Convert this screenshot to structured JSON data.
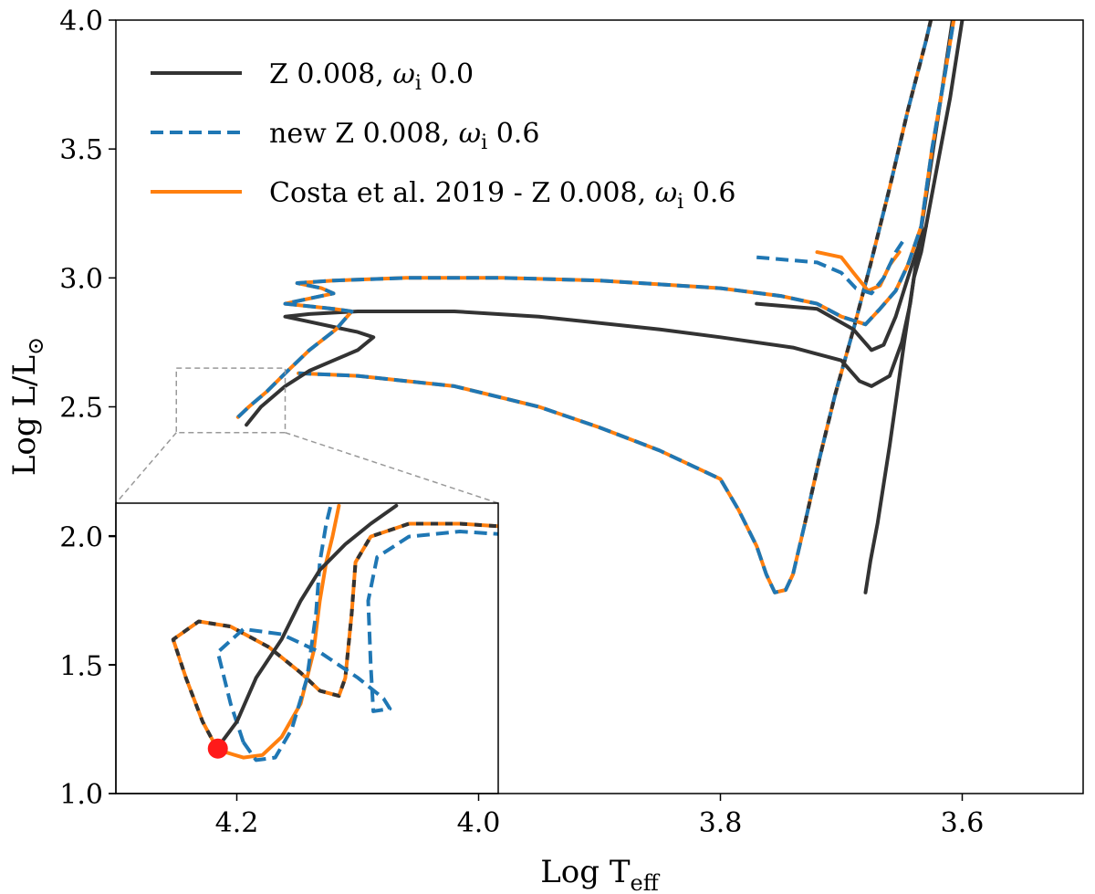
{
  "chart_data": {
    "type": "line",
    "xlabel": "Log T",
    "xlabel_sub": "eff",
    "ylabel": "Log L/L",
    "ylabel_sub": "⊙",
    "xlim": [
      4.3,
      3.5
    ],
    "ylim": [
      1.0,
      4.0
    ],
    "xticks": [
      "4.2",
      "4.0",
      "3.8",
      "3.6"
    ],
    "yticks": [
      "1.0",
      "1.5",
      "2.0",
      "2.5",
      "3.0",
      "3.5",
      "4.0"
    ],
    "colors": {
      "black": "#333333",
      "blue": "#1f77b4",
      "orange": "#ff7f0e",
      "red": "#ff1a1a",
      "zoombox": "#999999"
    },
    "legend": [
      {
        "label_pre": "Z 0.008, ",
        "omega": "ω",
        "omega_sub": "i",
        "label_post": " 0.0",
        "style": "solid",
        "color": "#333333"
      },
      {
        "label_pre": "new Z 0.008, ",
        "omega": "ω",
        "omega_sub": "i",
        "label_post": " 0.6",
        "style": "dashed",
        "color": "#1f77b4"
      },
      {
        "label_pre": "Costa et al. 2019 - Z 0.008, ",
        "omega": "ω",
        "omega_sub": "i",
        "label_post": " 0.6",
        "style": "solid",
        "color": "#ff7f0e"
      }
    ],
    "series": [
      {
        "name": "Z 0.008, ωi 0.0 (low mass track)",
        "style": "solid",
        "color": "#333333",
        "points": [
          [
            3.68,
            1.78
          ],
          [
            3.676,
            1.9
          ],
          [
            3.67,
            2.05
          ],
          [
            3.665,
            2.2
          ],
          [
            3.66,
            2.35
          ],
          [
            3.654,
            2.55
          ],
          [
            3.648,
            2.75
          ],
          [
            3.64,
            3.0
          ],
          [
            3.632,
            3.25
          ],
          [
            3.624,
            3.5
          ],
          [
            3.616,
            3.75
          ],
          [
            3.608,
            4.0
          ]
        ]
      },
      {
        "name": "Costa et al. 2019 - Z 0.008, ωi 0.6 (low mass track)",
        "style": "solid",
        "color": "#ff7f0e",
        "points": [
          [
            4.149,
            2.63
          ],
          [
            4.1,
            2.62
          ],
          [
            4.02,
            2.58
          ],
          [
            3.95,
            2.5
          ],
          [
            3.9,
            2.42
          ],
          [
            3.85,
            2.33
          ],
          [
            3.8,
            2.22
          ],
          [
            3.785,
            2.1
          ],
          [
            3.77,
            1.96
          ],
          [
            3.762,
            1.85
          ],
          [
            3.755,
            1.78
          ],
          [
            3.746,
            1.79
          ],
          [
            3.74,
            1.85
          ],
          [
            3.73,
            2.05
          ],
          [
            3.718,
            2.3
          ],
          [
            3.705,
            2.55
          ],
          [
            3.69,
            2.8
          ],
          [
            3.676,
            3.05
          ],
          [
            3.66,
            3.35
          ],
          [
            3.645,
            3.65
          ],
          [
            3.63,
            3.92
          ],
          [
            3.626,
            4.0
          ]
        ]
      },
      {
        "name": "new Z 0.008, ωi 0.6 (low mass track)",
        "style": "dashed",
        "color": "#1f77b4",
        "points": [
          [
            4.149,
            2.63
          ],
          [
            4.1,
            2.62
          ],
          [
            4.02,
            2.58
          ],
          [
            3.95,
            2.5
          ],
          [
            3.9,
            2.42
          ],
          [
            3.85,
            2.33
          ],
          [
            3.8,
            2.22
          ],
          [
            3.785,
            2.1
          ],
          [
            3.77,
            1.96
          ],
          [
            3.762,
            1.85
          ],
          [
            3.755,
            1.78
          ],
          [
            3.746,
            1.79
          ],
          [
            3.74,
            1.85
          ],
          [
            3.73,
            2.05
          ],
          [
            3.718,
            2.3
          ],
          [
            3.705,
            2.55
          ],
          [
            3.69,
            2.8
          ],
          [
            3.676,
            3.05
          ],
          [
            3.66,
            3.35
          ],
          [
            3.645,
            3.65
          ],
          [
            3.63,
            3.92
          ],
          [
            3.626,
            4.0
          ]
        ]
      },
      {
        "name": "Z 0.008, ωi 0.0 (low mass track overlay)",
        "style": "dashed",
        "color": "#333333",
        "points": [
          [
            3.73,
            2.05
          ],
          [
            3.718,
            2.3
          ],
          [
            3.705,
            2.55
          ],
          [
            3.69,
            2.8
          ],
          [
            3.676,
            3.05
          ],
          [
            3.66,
            3.35
          ],
          [
            3.645,
            3.65
          ],
          [
            3.63,
            3.92
          ],
          [
            3.626,
            4.0
          ]
        ]
      },
      {
        "name": "Z 0.008, ωi 0.0 (high mass track)",
        "style": "solid",
        "color": "#333333",
        "points": [
          [
            4.192,
            2.43
          ],
          [
            4.18,
            2.5
          ],
          [
            4.16,
            2.58
          ],
          [
            4.14,
            2.64
          ],
          [
            4.12,
            2.68
          ],
          [
            4.1,
            2.72
          ],
          [
            4.087,
            2.77
          ],
          [
            4.1,
            2.79
          ],
          [
            4.12,
            2.81
          ],
          [
            4.14,
            2.83
          ],
          [
            4.16,
            2.85
          ],
          [
            4.14,
            2.86
          ],
          [
            4.1,
            2.87
          ],
          [
            4.02,
            2.87
          ],
          [
            3.95,
            2.85
          ],
          [
            3.85,
            2.8
          ],
          [
            3.8,
            2.77
          ],
          [
            3.74,
            2.73
          ],
          [
            3.7,
            2.68
          ],
          [
            3.685,
            2.6
          ],
          [
            3.675,
            2.58
          ],
          [
            3.66,
            2.62
          ],
          [
            3.65,
            2.75
          ],
          [
            3.643,
            2.9
          ],
          [
            3.64,
            3.0
          ],
          [
            3.634,
            3.1
          ],
          [
            3.63,
            3.2
          ],
          [
            3.62,
            3.45
          ],
          [
            3.61,
            3.7
          ],
          [
            3.6,
            4.0
          ]
        ]
      },
      {
        "name": "Z 0.008, ωi 0.0 (high mass loop)",
        "style": "solid",
        "color": "#333333",
        "points": [
          [
            3.77,
            2.9
          ],
          [
            3.72,
            2.88
          ],
          [
            3.69,
            2.8
          ],
          [
            3.675,
            2.72
          ],
          [
            3.665,
            2.74
          ],
          [
            3.655,
            2.85
          ],
          [
            3.645,
            3.0
          ],
          [
            3.638,
            3.1
          ],
          [
            3.63,
            3.2
          ]
        ]
      },
      {
        "name": "Costa et al. 2019 - Z 0.008, ωi 0.6 (high mass track)",
        "style": "solid",
        "color": "#ff7f0e",
        "points": [
          [
            4.199,
            2.46
          ],
          [
            4.19,
            2.5
          ],
          [
            4.175,
            2.56
          ],
          [
            4.16,
            2.63
          ],
          [
            4.14,
            2.72
          ],
          [
            4.118,
            2.8
          ],
          [
            4.105,
            2.87
          ],
          [
            4.12,
            2.88
          ],
          [
            4.14,
            2.89
          ],
          [
            4.16,
            2.9
          ],
          [
            4.14,
            2.92
          ],
          [
            4.12,
            2.94
          ],
          [
            4.13,
            2.96
          ],
          [
            4.15,
            2.98
          ],
          [
            4.12,
            2.99
          ],
          [
            4.06,
            3.0
          ],
          [
            3.98,
            3.0
          ],
          [
            3.9,
            2.99
          ],
          [
            3.8,
            2.96
          ],
          [
            3.75,
            2.93
          ],
          [
            3.72,
            2.9
          ],
          [
            3.7,
            2.85
          ],
          [
            3.68,
            2.82
          ],
          [
            3.668,
            2.88
          ],
          [
            3.655,
            2.95
          ],
          [
            3.645,
            3.05
          ],
          [
            3.634,
            3.2
          ],
          [
            3.625,
            3.5
          ],
          [
            3.614,
            3.8
          ],
          [
            3.607,
            4.0
          ]
        ]
      },
      {
        "name": "new Z 0.008, ωi 0.6 (high mass track)",
        "style": "dashed",
        "color": "#1f77b4",
        "points": [
          [
            4.199,
            2.46
          ],
          [
            4.19,
            2.5
          ],
          [
            4.175,
            2.56
          ],
          [
            4.16,
            2.63
          ],
          [
            4.14,
            2.72
          ],
          [
            4.118,
            2.8
          ],
          [
            4.105,
            2.87
          ],
          [
            4.12,
            2.88
          ],
          [
            4.14,
            2.89
          ],
          [
            4.16,
            2.9
          ],
          [
            4.14,
            2.92
          ],
          [
            4.12,
            2.94
          ],
          [
            4.13,
            2.96
          ],
          [
            4.15,
            2.98
          ],
          [
            4.12,
            2.99
          ],
          [
            4.06,
            3.0
          ],
          [
            3.98,
            3.0
          ],
          [
            3.9,
            2.99
          ],
          [
            3.8,
            2.96
          ],
          [
            3.75,
            2.93
          ],
          [
            3.72,
            2.9
          ],
          [
            3.7,
            2.85
          ],
          [
            3.68,
            2.82
          ],
          [
            3.668,
            2.88
          ],
          [
            3.655,
            2.95
          ],
          [
            3.645,
            3.05
          ],
          [
            3.634,
            3.2
          ],
          [
            3.625,
            3.5
          ],
          [
            3.614,
            3.8
          ],
          [
            3.607,
            4.0
          ]
        ]
      },
      {
        "name": "Costa et al. 2019 - Z 0.008, ωi 0.6 (upper blue loop)",
        "style": "solid",
        "color": "#ff7f0e",
        "points": [
          [
            3.72,
            3.1
          ],
          [
            3.7,
            3.08
          ],
          [
            3.69,
            3.02
          ],
          [
            3.678,
            2.95
          ],
          [
            3.668,
            2.97
          ],
          [
            3.66,
            3.05
          ],
          [
            3.652,
            3.1
          ]
        ]
      },
      {
        "name": "new Z 0.008, ωi 0.6 (upper blue loop)",
        "style": "dashed",
        "color": "#1f77b4",
        "points": [
          [
            3.77,
            3.08
          ],
          [
            3.72,
            3.06
          ],
          [
            3.7,
            3.02
          ],
          [
            3.688,
            2.96
          ],
          [
            3.675,
            2.94
          ],
          [
            3.665,
            3.0
          ],
          [
            3.655,
            3.1
          ],
          [
            3.648,
            3.15
          ]
        ]
      },
      {
        "name": "Costa et al. 2019 - Z 0.008, ωi 0.6 (inset track)",
        "style": "solid",
        "color": "#ff7f0e",
        "inset": true,
        "points": [
          [
            4.22,
            1.17
          ],
          [
            4.232,
            1.28
          ],
          [
            4.245,
            1.45
          ],
          [
            4.255,
            1.6
          ],
          [
            4.235,
            1.67
          ],
          [
            4.21,
            1.65
          ],
          [
            4.18,
            1.57
          ],
          [
            4.155,
            1.47
          ],
          [
            4.14,
            1.4
          ],
          [
            4.125,
            1.38
          ],
          [
            4.12,
            1.45
          ],
          [
            4.115,
            1.7
          ],
          [
            4.112,
            1.9
          ],
          [
            4.1,
            2.0
          ],
          [
            4.07,
            2.05
          ],
          [
            4.03,
            2.05
          ],
          [
            4.0,
            2.04
          ]
        ]
      },
      {
        "name": "Z 0.008, ωi 0.0 (inset overlay on Costa)",
        "style": "dashed",
        "color": "#333333",
        "inset": true,
        "points": [
          [
            4.22,
            1.17
          ],
          [
            4.232,
            1.28
          ],
          [
            4.245,
            1.45
          ],
          [
            4.255,
            1.6
          ],
          [
            4.235,
            1.67
          ],
          [
            4.21,
            1.65
          ],
          [
            4.18,
            1.57
          ],
          [
            4.155,
            1.47
          ],
          [
            4.14,
            1.4
          ],
          [
            4.125,
            1.38
          ],
          [
            4.12,
            1.45
          ],
          [
            4.115,
            1.7
          ],
          [
            4.112,
            1.9
          ],
          [
            4.1,
            2.0
          ],
          [
            4.07,
            2.05
          ],
          [
            4.03,
            2.05
          ],
          [
            4.0,
            2.04
          ]
        ]
      },
      {
        "name": "Costa et al. 2019 - Z 0.008, ωi 0.6 (inset lower branch)",
        "style": "solid",
        "color": "#ff7f0e",
        "inset": true,
        "points": [
          [
            4.22,
            1.17
          ],
          [
            4.2,
            1.14
          ],
          [
            4.185,
            1.15
          ],
          [
            4.17,
            1.22
          ],
          [
            4.155,
            1.35
          ],
          [
            4.145,
            1.55
          ],
          [
            4.14,
            1.75
          ],
          [
            4.135,
            1.9
          ],
          [
            4.13,
            2.0
          ],
          [
            4.125,
            2.12
          ]
        ]
      },
      {
        "name": "new Z 0.008, ωi 0.6 (inset track)",
        "style": "dashed",
        "color": "#1f77b4",
        "inset": true,
        "points": [
          [
            4.2,
            1.2
          ],
          [
            4.21,
            1.35
          ],
          [
            4.22,
            1.55
          ],
          [
            4.2,
            1.64
          ],
          [
            4.17,
            1.62
          ],
          [
            4.14,
            1.55
          ],
          [
            4.11,
            1.45
          ],
          [
            4.09,
            1.37
          ],
          [
            4.085,
            1.33
          ],
          [
            4.098,
            1.32
          ],
          [
            4.1,
            1.5
          ],
          [
            4.102,
            1.75
          ],
          [
            4.095,
            1.92
          ],
          [
            4.07,
            2.0
          ],
          [
            4.03,
            2.02
          ],
          [
            4.0,
            2.01
          ]
        ]
      },
      {
        "name": "new Z 0.008, ωi 0.6 (inset lower branch)",
        "style": "dashed",
        "color": "#1f77b4",
        "inset": true,
        "points": [
          [
            4.2,
            1.2
          ],
          [
            4.19,
            1.13
          ],
          [
            4.175,
            1.14
          ],
          [
            4.162,
            1.25
          ],
          [
            4.15,
            1.45
          ],
          [
            4.143,
            1.7
          ],
          [
            4.14,
            1.9
          ],
          [
            4.135,
            2.05
          ],
          [
            4.13,
            2.15
          ]
        ]
      },
      {
        "name": "Z 0.008, ωi 0.0 (inset track)",
        "style": "solid",
        "color": "#333333",
        "inset": true,
        "points": [
          [
            4.22,
            1.18
          ],
          [
            4.205,
            1.28
          ],
          [
            4.19,
            1.45
          ],
          [
            4.17,
            1.6
          ],
          [
            4.155,
            1.75
          ],
          [
            4.14,
            1.87
          ],
          [
            4.12,
            1.97
          ],
          [
            4.1,
            2.05
          ],
          [
            4.08,
            2.12
          ]
        ]
      }
    ],
    "marker": {
      "x": 4.22,
      "y": 1.175,
      "color": "#ff1a1a",
      "inset": true
    },
    "inset": {
      "xlim": [
        4.3,
        4.0
      ],
      "ylim": [
        1.0,
        2.13
      ],
      "yticks": [
        "1.0",
        "1.5",
        "2.0"
      ],
      "zoom_box_xlim": [
        4.25,
        4.16
      ],
      "zoom_box_ylim": [
        2.4,
        2.65
      ]
    }
  }
}
